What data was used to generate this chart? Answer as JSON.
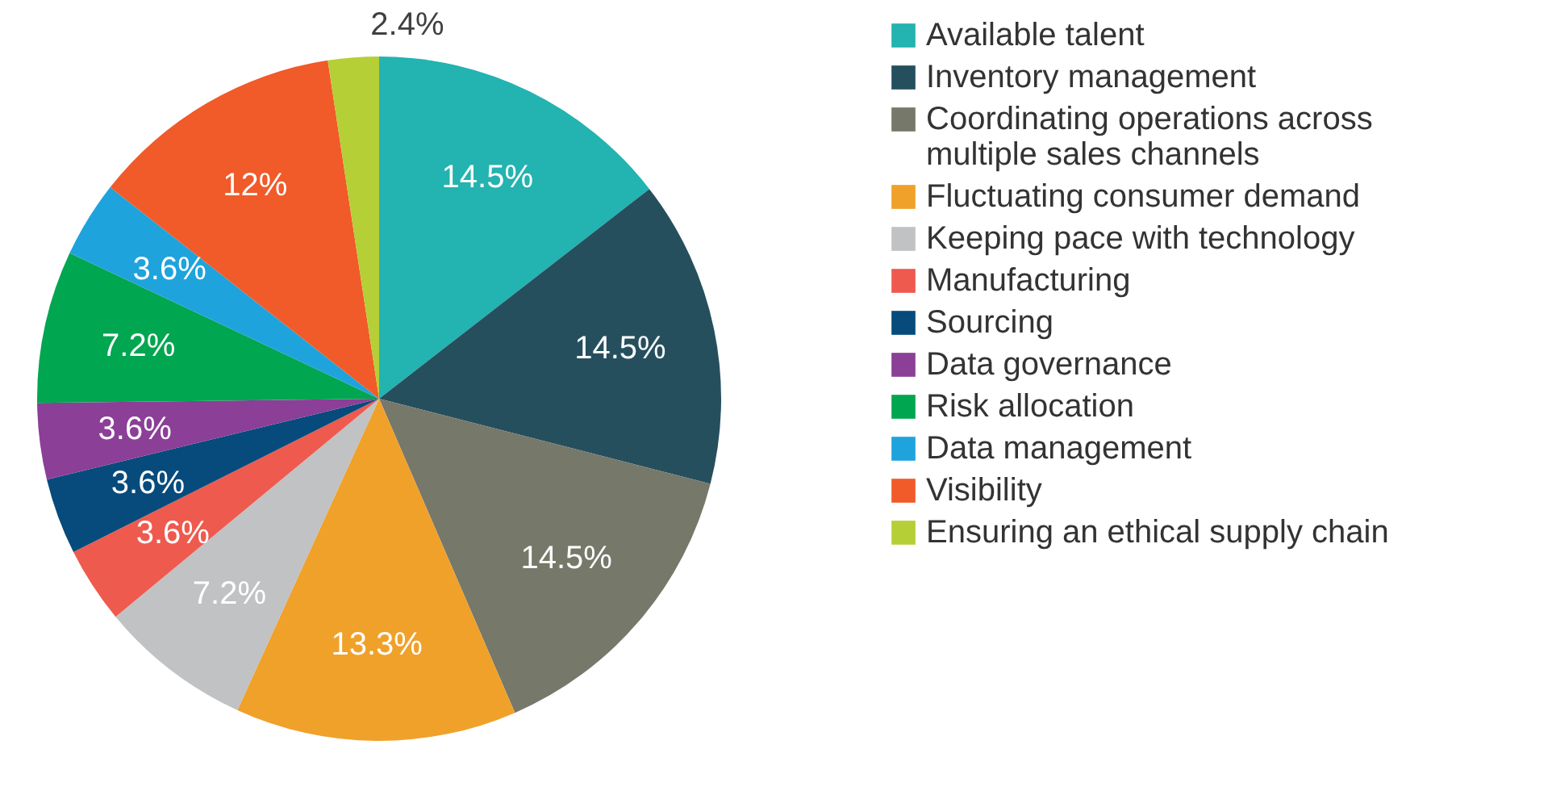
{
  "chart_data": {
    "type": "pie",
    "categories": [
      "Available talent",
      "Inventory management",
      "Coordinating operations across multiple sales channels",
      "Fluctuating consumer demand",
      "Keeping pace with technology",
      "Manufacturing",
      "Sourcing",
      "Data governance",
      "Risk allocation",
      "Data management",
      "Visibility",
      "Ensuring an ethical supply chain"
    ],
    "values": [
      14.5,
      14.5,
      14.5,
      13.3,
      7.2,
      3.6,
      3.6,
      3.6,
      7.2,
      3.6,
      12,
      2.4
    ],
    "value_labels": [
      "14.5%",
      "14.5%",
      "14.5%",
      "13.3%",
      "7.2%",
      "3.6%",
      "3.6%",
      "3.6%",
      "7.2%",
      "3.6%",
      "12%",
      "2.4%"
    ],
    "colors": [
      "#23b3b0",
      "#264f5e",
      "#76786a",
      "#f0a12a",
      "#c0c2c4",
      "#ef5a4e",
      "#064b7c",
      "#8b3f97",
      "#00a650",
      "#1fa3dc",
      "#f15a29",
      "#b5cf37"
    ],
    "legend": "right"
  }
}
